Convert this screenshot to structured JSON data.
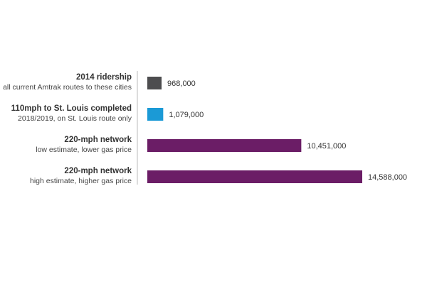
{
  "chart_data": {
    "type": "bar",
    "orientation": "horizontal",
    "categories": [
      {
        "title": "2014 ridership",
        "subtitle": "all current Amtrak routes to these cities"
      },
      {
        "title": "110mph to St. Louis completed",
        "subtitle": "2018/2019, on St. Louis route only"
      },
      {
        "title": "220-mph network",
        "subtitle": "low estimate, lower gas price"
      },
      {
        "title": "220-mph network",
        "subtitle": "high estimate, higher gas price"
      }
    ],
    "values": [
      968000,
      1079000,
      10451000,
      14588000
    ],
    "value_labels": [
      "968,000",
      "1,079,000",
      "10,451,000",
      "14,588,000"
    ],
    "colors": [
      "#4d4d4f",
      "#1b9ad6",
      "#6b1d66",
      "#6b1d66"
    ],
    "axis_color": "#bbbbbb",
    "title": "",
    "xlabel": "",
    "ylabel": "",
    "grid": false,
    "legend": "none"
  }
}
